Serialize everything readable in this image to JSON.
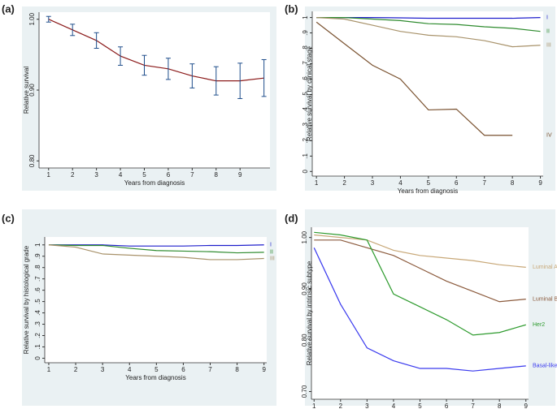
{
  "chart_data": [
    {
      "type": "line",
      "label": "(a)",
      "xlabel": "Years from diagnosis",
      "ylabel": "Relative survival",
      "x": [
        1,
        2,
        3,
        4,
        5,
        6,
        7,
        8,
        9,
        10
      ],
      "series": [
        {
          "name": null,
          "color": "#8b1a1a",
          "values": [
            1.0,
            0.985,
            0.97,
            0.948,
            0.935,
            0.93,
            0.92,
            0.913,
            0.913,
            0.917
          ],
          "errors": [
            0.004,
            0.008,
            0.011,
            0.013,
            0.014,
            0.015,
            0.017,
            0.02,
            0.025,
            0.026
          ],
          "error_color": "#1f4e8c"
        }
      ],
      "xlim": [
        0.6,
        10.25
      ],
      "ylim": [
        0.79,
        1.01
      ],
      "xticks": [
        1,
        2,
        3,
        4,
        5,
        6,
        7,
        8,
        9
      ],
      "yticks": [
        {
          "value": 0.8,
          "label": "0.80"
        },
        {
          "value": 0.9,
          "label": "0.90"
        },
        {
          "value": 1.0,
          "label": "1.00"
        }
      ]
    },
    {
      "type": "line",
      "label": "(b)",
      "xlabel": "Years from diagnosis",
      "ylabel": "Relative survival by clinical stage",
      "x": [
        1,
        2,
        3,
        4,
        5,
        6,
        7,
        8,
        9
      ],
      "series": [
        {
          "name": "I",
          "color": "#1f1fcc",
          "values": [
            1.0,
            1.0,
            1.0,
            0.998,
            0.995,
            0.995,
            0.995,
            0.995,
            1.0
          ]
        },
        {
          "name": "II",
          "color": "#2e8b2e",
          "values": [
            1.0,
            1.0,
            0.99,
            0.98,
            0.96,
            0.955,
            0.94,
            0.93,
            0.91
          ]
        },
        {
          "name": "III",
          "color": "#a8926a",
          "values": [
            1.0,
            0.99,
            0.95,
            0.91,
            0.885,
            0.875,
            0.85,
            0.81,
            0.82
          ]
        },
        {
          "name": "IV",
          "color": "#7a5230",
          "values": [
            0.97,
            0.83,
            0.69,
            0.6,
            0.4,
            0.405,
            0.235,
            0.235,
            null
          ]
        }
      ],
      "xlim": [
        0.85,
        9.1
      ],
      "ylim": [
        -0.03,
        1.04
      ],
      "xticks": [
        1,
        2,
        3,
        4,
        5,
        6,
        7,
        8,
        9
      ],
      "yticks": [
        0,
        {
          "value": 0.1,
          "label": ".1"
        },
        {
          "value": 0.2,
          "label": ".2"
        },
        {
          "value": 0.3,
          "label": ".3"
        },
        {
          "value": 0.4,
          "label": ".4"
        },
        {
          "value": 0.5,
          "label": ".5"
        },
        {
          "value": 0.6,
          "label": ".6"
        },
        {
          "value": 0.7,
          "label": ".7"
        },
        {
          "value": 0.8,
          "label": ".8"
        },
        {
          "value": 0.9,
          "label": ".9"
        },
        1
      ]
    },
    {
      "type": "line",
      "label": "(c)",
      "xlabel": "Years from diagnosis",
      "ylabel": "Relative survival by histological grade",
      "x": [
        1,
        2,
        3,
        4,
        5,
        6,
        7,
        8,
        9
      ],
      "series": [
        {
          "name": "I",
          "color": "#1f1fcc",
          "values": [
            1.0,
            1.0,
            1.0,
            0.99,
            0.99,
            0.99,
            0.995,
            0.995,
            1.0
          ]
        },
        {
          "name": "II",
          "color": "#2e8b2e",
          "values": [
            1.0,
            0.995,
            0.995,
            0.97,
            0.95,
            0.945,
            0.94,
            0.93,
            0.935
          ]
        },
        {
          "name": "III",
          "color": "#a8926a",
          "values": [
            1.0,
            0.98,
            0.92,
            0.91,
            0.9,
            0.89,
            0.87,
            0.87,
            0.88
          ]
        }
      ],
      "xlim": [
        0.85,
        9.1
      ],
      "ylim": [
        -0.04,
        1.07
      ],
      "xticks": [
        1,
        2,
        3,
        4,
        5,
        6,
        7,
        8,
        9
      ],
      "yticks": [
        0,
        {
          "value": 0.1,
          "label": ".1"
        },
        {
          "value": 0.2,
          "label": ".2"
        },
        {
          "value": 0.3,
          "label": ".3"
        },
        {
          "value": 0.4,
          "label": ".4"
        },
        {
          "value": 0.5,
          "label": ".5"
        },
        {
          "value": 0.6,
          "label": ".6"
        },
        {
          "value": 0.7,
          "label": ".7"
        },
        {
          "value": 0.8,
          "label": ".8"
        },
        {
          "value": 0.9,
          "label": ".9"
        },
        1
      ]
    },
    {
      "type": "line",
      "label": "(d)",
      "xlabel": "Years from diagnosis",
      "ylabel": "Relative survival by intrinsic subtype",
      "x": [
        1,
        2,
        3,
        4,
        5,
        6,
        7,
        8,
        9
      ],
      "series": [
        {
          "name": "Luminal A",
          "color": "#c8a878",
          "values": [
            1.005,
            1.0,
            0.995,
            0.975,
            0.965,
            0.96,
            0.955,
            0.947,
            0.942
          ]
        },
        {
          "name": "Luminal B",
          "color": "#8b5a3c",
          "values": [
            0.995,
            0.995,
            0.98,
            0.965,
            0.94,
            0.915,
            0.895,
            0.875,
            0.88
          ]
        },
        {
          "name": "Her2",
          "color": "#2e9b2e",
          "values": [
            1.01,
            1.005,
            0.995,
            0.89,
            0.865,
            0.84,
            0.81,
            0.815,
            0.83
          ]
        },
        {
          "name": "Basal-like",
          "color": "#3a3aee",
          "values": [
            0.98,
            0.87,
            0.785,
            0.76,
            0.745,
            0.745,
            0.74,
            0.745,
            0.75
          ]
        }
      ],
      "xlim": [
        0.9,
        9.1
      ],
      "ylim": [
        0.685,
        1.02
      ],
      "xticks": [
        1,
        2,
        3,
        4,
        5,
        6,
        7,
        8,
        9
      ],
      "yticks": [
        {
          "value": 0.7,
          "label": "0.70"
        },
        {
          "value": 0.8,
          "label": "0.80"
        },
        {
          "value": 0.9,
          "label": "0.90"
        },
        {
          "value": 1.0,
          "label": "1.00"
        }
      ]
    }
  ]
}
